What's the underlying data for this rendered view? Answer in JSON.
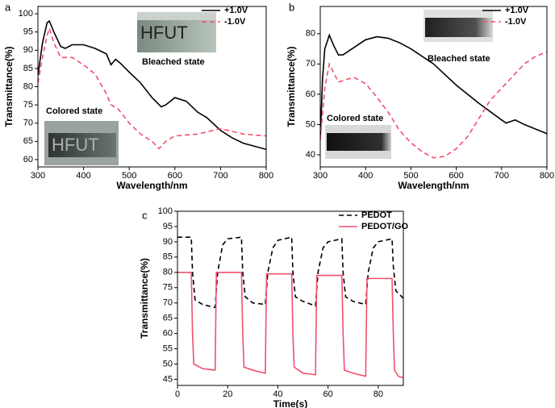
{
  "chart_data": [
    {
      "type": "line",
      "panel_label": "a",
      "xlabel": "Wavelength/nm",
      "ylabel": "Transmittance(%)",
      "xlim": [
        300,
        800
      ],
      "xticks": [
        300,
        400,
        500,
        600,
        700,
        800
      ],
      "ylim": [
        58,
        102
      ],
      "yticks": [
        60,
        65,
        70,
        75,
        80,
        85,
        90,
        95,
        100
      ],
      "legend": "upper right",
      "annotations": [
        "HFUT",
        "Bleached state",
        "Colored state",
        "HFUT"
      ],
      "series": [
        {
          "name": "+1.0V",
          "color": "#000000",
          "style": "solid",
          "x": [
            300,
            310,
            320,
            325,
            335,
            350,
            360,
            375,
            400,
            425,
            450,
            460,
            470,
            480,
            500,
            525,
            550,
            570,
            580,
            600,
            625,
            650,
            670,
            700,
            725,
            750,
            800
          ],
          "values": [
            83,
            92,
            97.5,
            98,
            95,
            91,
            90.5,
            91.5,
            91.5,
            90.5,
            89,
            86,
            87.5,
            86.5,
            84,
            81,
            77,
            74.5,
            75,
            77,
            76,
            73,
            71.5,
            68,
            66,
            64.5,
            62.8
          ]
        },
        {
          "name": "-1.0V",
          "color": "#f0506e",
          "style": "dashed",
          "x": [
            300,
            310,
            320,
            325,
            335,
            350,
            375,
            400,
            425,
            450,
            460,
            475,
            500,
            525,
            550,
            565,
            580,
            600,
            650,
            700,
            750,
            800
          ],
          "values": [
            81,
            88,
            94,
            96,
            92,
            88,
            88,
            86,
            83.5,
            78,
            75,
            74,
            70,
            67,
            65,
            63,
            65,
            66.5,
            67,
            68.5,
            67,
            66.5
          ]
        }
      ]
    },
    {
      "type": "line",
      "panel_label": "b",
      "xlabel": "Wavelength/nm",
      "ylabel": "Transmittance(%)",
      "xlim": [
        300,
        800
      ],
      "xticks": [
        300,
        400,
        500,
        600,
        700,
        800
      ],
      "ylim": [
        36,
        89
      ],
      "yticks": [
        40,
        50,
        60,
        70,
        80
      ],
      "legend": "upper right",
      "annotations": [
        "Bleached state",
        "Colored state"
      ],
      "series": [
        {
          "name": "+1.0V",
          "color": "#000000",
          "style": "solid",
          "x": [
            300,
            305,
            310,
            320,
            330,
            340,
            350,
            375,
            400,
            425,
            450,
            475,
            500,
            550,
            600,
            650,
            700,
            710,
            730,
            750,
            800
          ],
          "values": [
            45,
            65,
            75,
            79.5,
            76,
            73,
            73,
            75.5,
            78,
            79,
            78.5,
            77,
            75,
            70,
            63,
            57,
            51.5,
            50.5,
            51.5,
            50,
            47
          ]
        },
        {
          "name": "-1.0V",
          "color": "#f0506e",
          "style": "dashed",
          "x": [
            300,
            310,
            320,
            330,
            340,
            360,
            375,
            400,
            425,
            450,
            475,
            500,
            525,
            550,
            575,
            600,
            625,
            650,
            675,
            700,
            725,
            750,
            775,
            800
          ],
          "values": [
            45,
            62,
            70,
            67,
            64,
            65,
            65.5,
            63.5,
            59,
            54,
            48,
            44,
            41,
            39,
            39.5,
            42,
            46,
            52,
            58,
            62,
            66,
            70,
            72.5,
            74
          ]
        }
      ]
    },
    {
      "type": "line",
      "panel_label": "c",
      "xlabel": "Time(s)",
      "ylabel": "Transmittance(%)",
      "xlim": [
        0,
        90
      ],
      "xticks": [
        0,
        20,
        40,
        60,
        80
      ],
      "ylim": [
        43,
        100
      ],
      "yticks": [
        45,
        50,
        55,
        60,
        65,
        70,
        75,
        80,
        85,
        90,
        95,
        100
      ],
      "legend": "upper right",
      "series": [
        {
          "name": "PEDOT",
          "color": "#000000",
          "style": "dashed",
          "x": [
            0,
            5.5,
            6,
            7,
            10,
            15,
            16,
            18,
            20,
            25.5,
            26,
            27,
            30,
            35,
            36,
            38,
            40,
            45.5,
            46,
            47,
            50,
            55,
            56,
            58,
            60,
            65.5,
            66,
            67,
            70,
            75,
            76,
            78,
            80,
            85.5,
            86,
            87,
            90
          ],
          "values": [
            91.5,
            91.5,
            80,
            71,
            69.5,
            68.5,
            80,
            89,
            91,
            91.5,
            80,
            72,
            70,
            69.5,
            80,
            88,
            90.5,
            91.5,
            80,
            72,
            70.5,
            69,
            80,
            88,
            90,
            91,
            80,
            72,
            70.5,
            69.5,
            80,
            88,
            90,
            91,
            82,
            74,
            71.5
          ]
        },
        {
          "name": "PEDOT/GO",
          "color": "#f0506e",
          "style": "solid",
          "x": [
            0,
            5.5,
            6,
            6.5,
            10,
            15,
            15.5,
            25.5,
            26,
            26.5,
            30,
            35,
            35.5,
            45.5,
            46,
            46.5,
            50,
            55,
            55.5,
            65.5,
            66,
            66.5,
            70,
            75,
            75.5,
            85.5,
            86,
            86.5,
            88,
            90
          ],
          "values": [
            80,
            80,
            60,
            50,
            48.5,
            48,
            80,
            80,
            60,
            49,
            48,
            47,
            79.5,
            79.5,
            60,
            49,
            47,
            46.5,
            79,
            79,
            60,
            48,
            47,
            46,
            78,
            78,
            60,
            48,
            46,
            45.5
          ]
        }
      ]
    }
  ]
}
